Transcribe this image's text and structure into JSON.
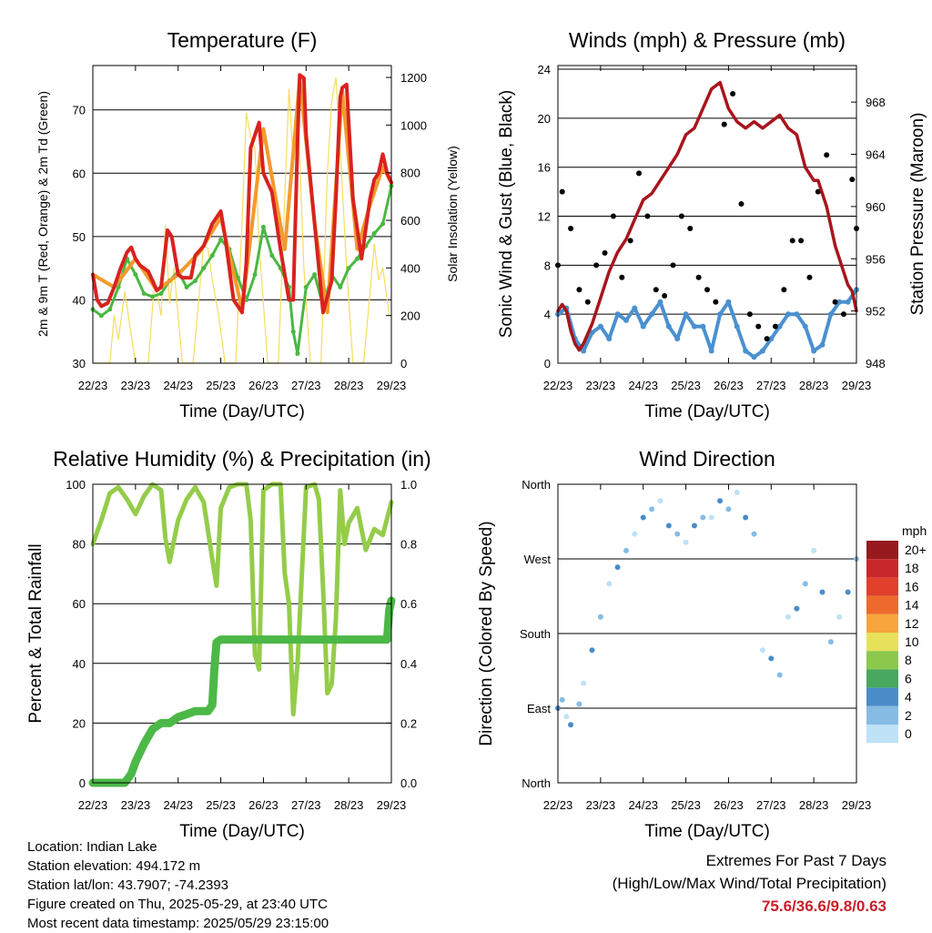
{
  "colors": {
    "temp_red": "#d8231f",
    "temp_orange": "#f39a2b",
    "dewpoint_green": "#4ab842",
    "insolation_yellow": "#f7dc5e",
    "wind_blue": "#4a90d0",
    "gust_black": "#000000",
    "pressure_maroon": "#a8151d",
    "rh_green": "#94cc4a",
    "precip_green": "#4cb847",
    "extremes_red": "#c8202a"
  },
  "info": {
    "location": "Location: Indian Lake",
    "elevation": "Station elevation: 494.172 m",
    "latlon": "Station lat/lon: 43.7907; -74.2393",
    "created": "Figure created on Thu, 2025-05-29, at 23:40 UTC",
    "recent": "Most recent data timestamp: 2025/05/29 23:15:00"
  },
  "extremes": {
    "line1": "Extremes For Past 7 Days",
    "line2": "(High/Low/Max Wind/Total Precipitation)",
    "values": "75.6/36.6/9.8/0.63"
  },
  "chart_data": [
    {
      "type": "line",
      "title": "Temperature (F)",
      "xlabel": "Time (Day/UTC)",
      "ylabel": "2m & 9m T (Red, Orange) & 2m Td (Green)",
      "y2label": "Solar Insolation (Yellow)",
      "x_ticks": [
        "22/23",
        "23/23",
        "24/23",
        "25/23",
        "26/23",
        "27/23",
        "28/23",
        "29/23"
      ],
      "xlim": [
        0,
        7
      ],
      "ylim": [
        30,
        77
      ],
      "y_ticks": [
        30,
        40,
        50,
        60,
        70
      ],
      "y2lim": [
        0,
        1250
      ],
      "y2_ticks": [
        0,
        200,
        400,
        600,
        800,
        1000,
        1200
      ],
      "series": [
        {
          "name": "2m T",
          "color": "temp_red",
          "x": [
            0,
            0.1,
            0.2,
            0.35,
            0.5,
            0.65,
            0.8,
            0.9,
            1.0,
            1.1,
            1.3,
            1.5,
            1.6,
            1.7,
            1.75,
            1.85,
            2.0,
            2.1,
            2.3,
            2.4,
            2.6,
            2.8,
            3.0,
            3.1,
            3.3,
            3.5,
            3.6,
            3.7,
            3.9,
            4.0,
            4.2,
            4.4,
            4.6,
            4.7,
            4.8,
            4.85,
            4.95,
            5.0,
            5.2,
            5.4,
            5.6,
            5.7,
            5.8,
            5.85,
            5.95,
            6.1,
            6.3,
            6.5,
            6.6,
            6.7,
            6.8,
            6.9,
            7.0
          ],
          "y": [
            44,
            40,
            39,
            39.5,
            42,
            45,
            47.5,
            48.3,
            46.5,
            45.5,
            44.5,
            41.5,
            42,
            48,
            51,
            50,
            44,
            43.5,
            43.5,
            47,
            48.5,
            52,
            54,
            50,
            40,
            38,
            46,
            64,
            68,
            60,
            57,
            48,
            40,
            40,
            65,
            75.5,
            75,
            66,
            52,
            38,
            43,
            56,
            72,
            73.5,
            74,
            56,
            46.5,
            56,
            59,
            60,
            63,
            60,
            58.5
          ]
        },
        {
          "name": "9m T",
          "color": "temp_orange",
          "x": [
            0,
            0.5,
            1.0,
            1.5,
            2.0,
            2.5,
            3.0,
            3.5,
            4.0,
            4.5,
            4.85,
            5.2,
            5.5,
            5.85,
            6.2,
            6.5,
            6.8,
            7.0
          ],
          "y": [
            44,
            42,
            46.5,
            41.5,
            44,
            47.5,
            53,
            38.5,
            67,
            48,
            74.8,
            52,
            38,
            73,
            48,
            55,
            61,
            58.5
          ]
        },
        {
          "name": "2m Td",
          "color": "dewpoint_green",
          "x": [
            0,
            0.2,
            0.4,
            0.6,
            0.8,
            1.0,
            1.2,
            1.4,
            1.6,
            1.8,
            2.0,
            2.2,
            2.4,
            2.6,
            2.8,
            3.0,
            3.2,
            3.4,
            3.6,
            3.8,
            4.0,
            4.2,
            4.4,
            4.6,
            4.7,
            4.8,
            5.0,
            5.2,
            5.4,
            5.6,
            5.8,
            6.0,
            6.2,
            6.4,
            6.6,
            6.8,
            7.0
          ],
          "y": [
            38.5,
            37.5,
            38.5,
            42,
            46.5,
            44,
            41,
            40.5,
            41,
            43,
            44.5,
            42,
            43,
            45,
            47,
            49.5,
            48,
            43.5,
            40,
            44,
            51.5,
            47,
            45,
            42,
            35,
            31.5,
            42,
            44,
            39,
            44,
            42,
            45,
            46.5,
            48.5,
            50.5,
            52,
            58
          ]
        },
        {
          "name": "Solar Insolation",
          "color": "insolation_yellow",
          "axis": "y2",
          "x": [
            0,
            0.4,
            0.5,
            0.6,
            0.75,
            0.85,
            1.0,
            1.3,
            1.45,
            1.6,
            1.7,
            1.8,
            1.9,
            2.1,
            2.35,
            2.5,
            2.6,
            2.7,
            2.8,
            2.95,
            3.1,
            3.35,
            3.5,
            3.6,
            3.7,
            3.8,
            3.9,
            4.1,
            4.35,
            4.5,
            4.6,
            4.7,
            4.8,
            4.95,
            5.1,
            5.35,
            5.5,
            5.6,
            5.7,
            5.8,
            5.95,
            6.1,
            6.35,
            6.5,
            6.6,
            6.7,
            6.8,
            6.95,
            7.0
          ],
          "y": [
            0,
            0,
            200,
            100,
            300,
            180,
            0,
            0,
            350,
            200,
            580,
            250,
            400,
            0,
            0,
            300,
            500,
            480,
            350,
            200,
            0,
            0,
            600,
            1050,
            950,
            900,
            500,
            0,
            0,
            700,
            1150,
            850,
            1100,
            400,
            0,
            0,
            800,
            1100,
            1200,
            900,
            400,
            0,
            0,
            300,
            500,
            350,
            400,
            200,
            200
          ]
        }
      ]
    },
    {
      "type": "scatter",
      "title": "Winds (mph) & Pressure (mb)",
      "xlabel": "Time (Day/UTC)",
      "ylabel": "Sonic Wind & Gust (Blue, Black)",
      "y2label": "Station Pressure (Maroon)",
      "x_ticks": [
        "22/23",
        "23/23",
        "24/23",
        "25/23",
        "26/23",
        "27/23",
        "28/23",
        "29/23"
      ],
      "xlim": [
        0,
        7
      ],
      "ylim": [
        0,
        24.3
      ],
      "y_ticks": [
        0,
        4,
        8,
        12,
        16,
        20,
        24
      ],
      "y2lim": [
        948,
        970.8
      ],
      "y2_ticks": [
        948,
        952,
        956,
        960,
        964,
        968
      ],
      "series": [
        {
          "name": "Sonic Wind",
          "color": "wind_blue",
          "x": [
            0,
            0.2,
            0.4,
            0.6,
            0.8,
            1.0,
            1.2,
            1.4,
            1.6,
            1.8,
            2.0,
            2.2,
            2.4,
            2.6,
            2.8,
            3.0,
            3.2,
            3.4,
            3.6,
            3.8,
            4.0,
            4.2,
            4.4,
            4.6,
            4.8,
            5.0,
            5.2,
            5.4,
            5.6,
            5.8,
            6.0,
            6.2,
            6.4,
            6.6,
            6.8,
            7.0
          ],
          "y": [
            4,
            4.5,
            2,
            1,
            2.5,
            3,
            2,
            4,
            3.5,
            4.5,
            3,
            4,
            5,
            3,
            2,
            4,
            3,
            3,
            1,
            4,
            5,
            3,
            1,
            0.5,
            1,
            2,
            3,
            4,
            4,
            3,
            1,
            1.5,
            4,
            5,
            5,
            6
          ]
        },
        {
          "name": "Gust",
          "color": "gust_black",
          "x": [
            0,
            0.1,
            0.3,
            0.5,
            0.7,
            0.9,
            1.1,
            1.3,
            1.5,
            1.7,
            1.9,
            2.1,
            2.3,
            2.5,
            2.7,
            2.9,
            3.1,
            3.3,
            3.5,
            3.7,
            3.9,
            4.1,
            4.3,
            4.5,
            4.7,
            4.9,
            5.1,
            5.3,
            5.5,
            5.7,
            5.9,
            6.1,
            6.3,
            6.5,
            6.7,
            6.9,
            7.0
          ],
          "y": [
            8,
            14,
            11,
            6,
            5,
            8,
            9,
            12,
            7,
            10,
            15.5,
            12,
            6,
            5.5,
            8,
            12,
            11,
            7,
            6,
            5,
            19.5,
            22,
            13,
            4,
            3,
            2,
            3,
            6,
            10,
            10,
            7,
            14,
            17,
            5,
            4,
            15,
            11
          ]
        },
        {
          "name": "Station Pressure",
          "color": "pressure_maroon",
          "axis": "y2",
          "x": [
            0,
            0.1,
            0.2,
            0.3,
            0.4,
            0.5,
            0.6,
            0.8,
            1.0,
            1.2,
            1.4,
            1.6,
            1.8,
            2.0,
            2.2,
            2.4,
            2.6,
            2.8,
            3.0,
            3.2,
            3.4,
            3.6,
            3.8,
            4.0,
            4.2,
            4.4,
            4.6,
            4.8,
            5.0,
            5.2,
            5.4,
            5.6,
            5.8,
            6.0,
            6.1,
            6.2,
            6.3,
            6.4,
            6.5,
            6.6,
            6.7,
            6.8,
            6.9,
            7.0
          ],
          "y": [
            952,
            952.5,
            952,
            950.5,
            949.5,
            949,
            949.5,
            951,
            953,
            955,
            956.5,
            957.5,
            959,
            960.5,
            961,
            962,
            963,
            964,
            965.5,
            966,
            967.5,
            969,
            969.5,
            967.5,
            966.5,
            966,
            966.5,
            966,
            966.5,
            967,
            966,
            965.5,
            963,
            962,
            962,
            961,
            960,
            958.5,
            957,
            956,
            955,
            954,
            953.5,
            952
          ]
        }
      ]
    },
    {
      "type": "line",
      "title": "Relative Humidity (%) & Precipitation (in)",
      "xlabel": "Time (Day/UTC)",
      "ylabel": "Percent & Total Rainfall",
      "x_ticks": [
        "22/23",
        "23/23",
        "24/23",
        "25/23",
        "26/23",
        "27/23",
        "28/23",
        "29/23"
      ],
      "xlim": [
        0,
        7
      ],
      "ylim": [
        0,
        100
      ],
      "y_ticks": [
        0,
        20,
        40,
        60,
        80,
        100
      ],
      "y2lim": [
        0,
        1.0
      ],
      "y2_ticks": [
        "0.0",
        "0.2",
        "0.4",
        "0.6",
        "0.8",
        "1.0"
      ],
      "series": [
        {
          "name": "Relative Humidity",
          "color": "rh_green",
          "x": [
            0,
            0.2,
            0.4,
            0.6,
            0.8,
            1.0,
            1.2,
            1.4,
            1.6,
            1.7,
            1.8,
            2.0,
            2.2,
            2.4,
            2.6,
            2.8,
            2.9,
            3.0,
            3.2,
            3.4,
            3.6,
            3.7,
            3.8,
            3.9,
            4.0,
            4.2,
            4.4,
            4.5,
            4.6,
            4.7,
            4.8,
            5.0,
            5.2,
            5.3,
            5.4,
            5.5,
            5.6,
            5.7,
            5.8,
            5.9,
            6.0,
            6.2,
            6.4,
            6.6,
            6.8,
            7.0
          ],
          "y": [
            80,
            88,
            97,
            99,
            95,
            90,
            96,
            100,
            98,
            82,
            74,
            88,
            95,
            99,
            94,
            75,
            66,
            92,
            99,
            100,
            100,
            88,
            43,
            38,
            98,
            100,
            100,
            70,
            60,
            23,
            40,
            99,
            100,
            95,
            65,
            30,
            33,
            55,
            98,
            80,
            87,
            92,
            78,
            85,
            83,
            94
          ]
        },
        {
          "name": "Total Precipitation",
          "color": "precip_green",
          "axis": "y2",
          "x": [
            0,
            0.5,
            0.75,
            0.9,
            1.0,
            1.2,
            1.4,
            1.6,
            1.8,
            2.0,
            2.2,
            2.4,
            2.7,
            2.8,
            2.85,
            2.9,
            3.0,
            3.5,
            4.0,
            4.5,
            5.0,
            5.5,
            6.0,
            6.5,
            6.9,
            6.95,
            7.0
          ],
          "y": [
            0,
            0,
            0,
            0.03,
            0.07,
            0.13,
            0.18,
            0.2,
            0.2,
            0.22,
            0.23,
            0.24,
            0.24,
            0.26,
            0.38,
            0.47,
            0.48,
            0.48,
            0.48,
            0.48,
            0.48,
            0.48,
            0.48,
            0.48,
            0.48,
            0.58,
            0.61
          ]
        }
      ]
    },
    {
      "type": "scatter",
      "title": "Wind Direction",
      "xlabel": "Time (Day/UTC)",
      "ylabel": "Direction (Colored By Speed)",
      "x_ticks": [
        "22/23",
        "23/23",
        "24/23",
        "25/23",
        "26/23",
        "27/23",
        "28/23",
        "29/23"
      ],
      "xlim": [
        0,
        7
      ],
      "ylim": [
        0,
        360
      ],
      "y_ticks": [
        "North",
        "East",
        "South",
        "West",
        "North"
      ],
      "legend": {
        "title": "mph",
        "labels": [
          "20+",
          "18",
          "16",
          "14",
          "12",
          "10",
          "8",
          "6",
          "4",
          "2",
          "0"
        ],
        "colors": [
          "#961a1e",
          "#c8282a",
          "#e0402c",
          "#ee6a2c",
          "#f6a43c",
          "#e6e15a",
          "#8cc84c",
          "#48a860",
          "#4a8cc8",
          "#86bce4",
          "#bee2f6"
        ]
      },
      "series": [
        {
          "name": "Wind Direction",
          "x": [
            0,
            0.1,
            0.2,
            0.3,
            0.5,
            0.6,
            0.8,
            1.0,
            1.2,
            1.4,
            1.6,
            1.8,
            2.0,
            2.2,
            2.4,
            2.6,
            2.8,
            3.0,
            3.2,
            3.4,
            3.6,
            3.8,
            4.0,
            4.2,
            4.4,
            4.6,
            4.8,
            5.0,
            5.2,
            5.4,
            5.6,
            5.8,
            6.0,
            6.2,
            6.4,
            6.6,
            6.8,
            7.0
          ],
          "y": [
            90,
            100,
            80,
            70,
            95,
            120,
            160,
            200,
            240,
            260,
            280,
            300,
            320,
            330,
            340,
            310,
            300,
            290,
            310,
            320,
            320,
            340,
            330,
            350,
            320,
            300,
            160,
            150,
            130,
            200,
            210,
            240,
            280,
            230,
            170,
            200,
            230,
            270
          ]
        }
      ]
    }
  ]
}
